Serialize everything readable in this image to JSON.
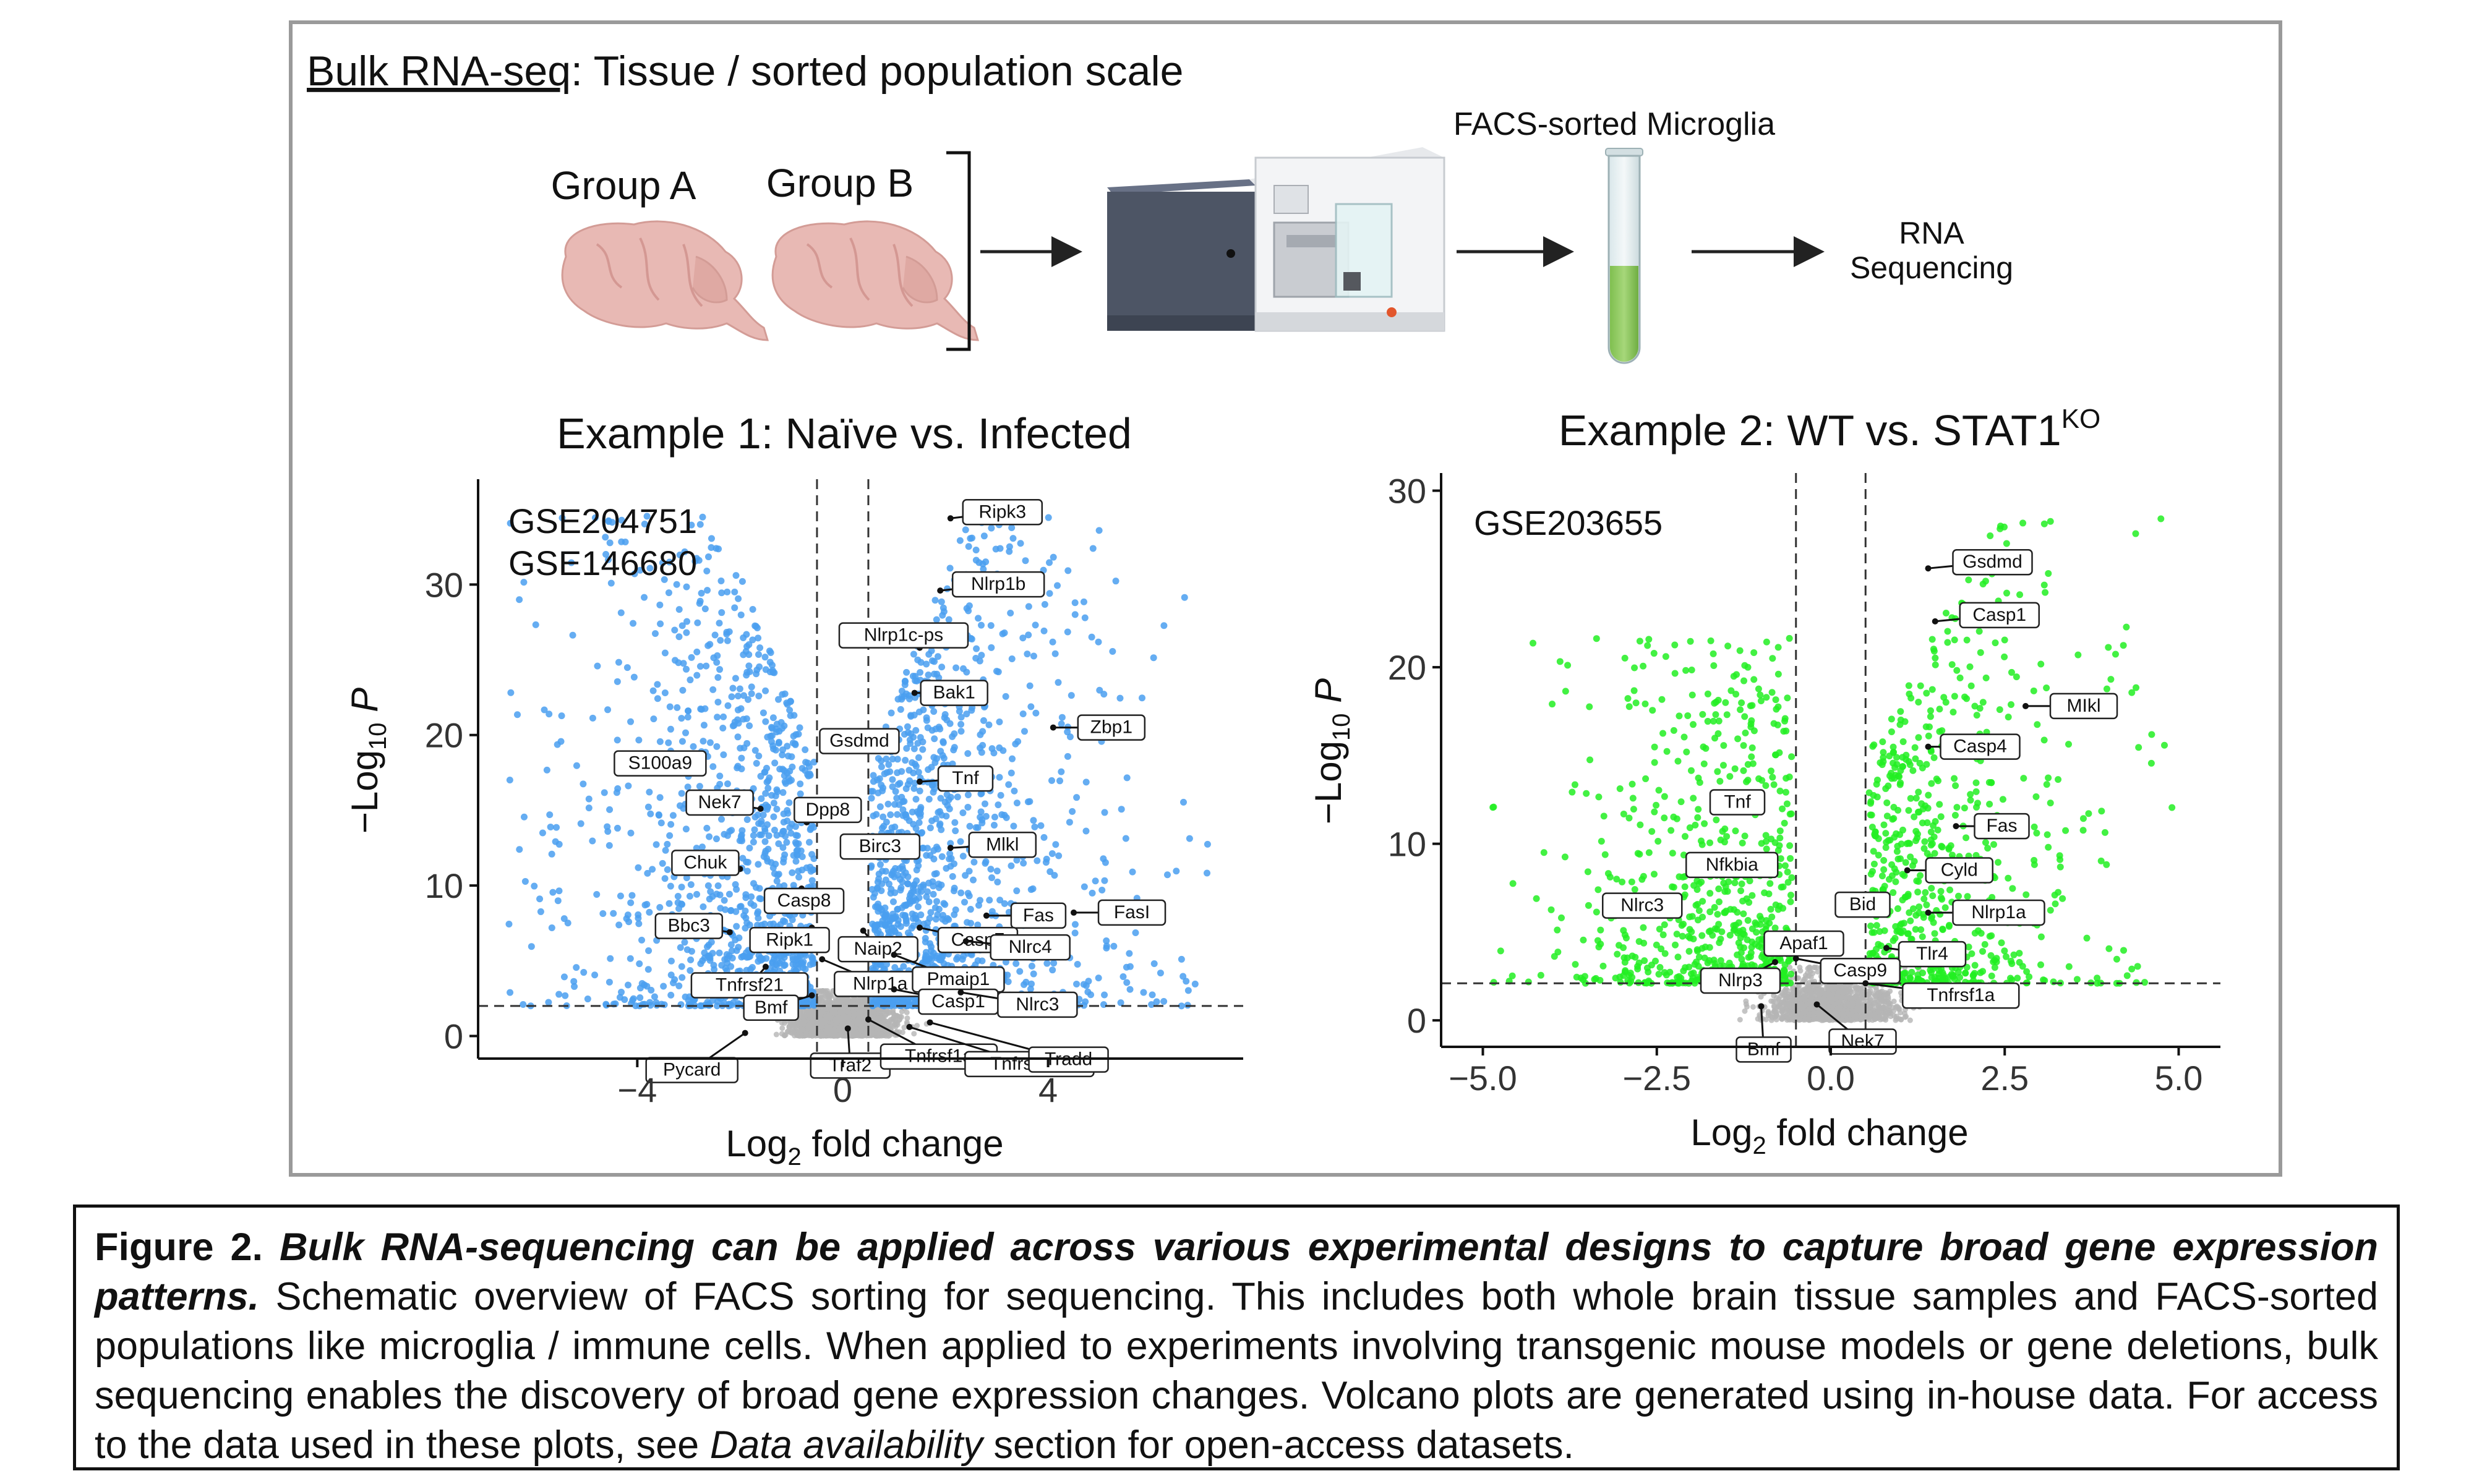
{
  "schematic": {
    "title_underlined": "Bulk RNA-seq",
    "title_rest": ": Tissue / sorted population scale",
    "group_a": "Group A",
    "group_b": "Group B",
    "facs_label": "FACS-sorted Microglia",
    "rna_line1": "RNA",
    "rna_line2": "Sequencing"
  },
  "colors": {
    "example1_points": "#4a9ff0",
    "example2_points": "#22ee22",
    "nonsig_points": "#b5b5b5",
    "brain": "#e8b9b4",
    "tube_liquid": "#8cc45c",
    "machine_dark": "#4d5565"
  },
  "chart_data": [
    {
      "type": "scatter",
      "subtype": "volcano",
      "title": "Example 1: Naïve vs. Infected",
      "annotation_lines": [
        "GSE204751",
        "GSE146680"
      ],
      "xlabel": "Log2 fold change",
      "ylabel": "−Log10 P",
      "xlim": [
        -7.1,
        7.8
      ],
      "ylim": [
        -1.5,
        37
      ],
      "x_ticks": [
        -4,
        0,
        4
      ],
      "y_ticks": [
        0,
        10,
        20,
        30
      ],
      "fc_threshold": [
        -0.5,
        0.5
      ],
      "p_threshold": 2,
      "grid": false,
      "labeled_genes": [
        {
          "gene": "Ripk3",
          "x": 2.1,
          "y": 34.4
        },
        {
          "gene": "Nlrp1b",
          "x": 1.9,
          "y": 29.6
        },
        {
          "gene": "Nlrp1c-ps",
          "x": 1.5,
          "y": 25.8
        },
        {
          "gene": "Bak1",
          "x": 1.4,
          "y": 22.8
        },
        {
          "gene": "Zbp1",
          "x": 4.1,
          "y": 20.5
        },
        {
          "gene": "Gsdmd",
          "x": 1.0,
          "y": 19.8
        },
        {
          "gene": "S100a9",
          "x": -3.0,
          "y": 17.5
        },
        {
          "gene": "Tnf",
          "x": 1.5,
          "y": 16.9
        },
        {
          "gene": "Nek7",
          "x": -1.6,
          "y": 15.1
        },
        {
          "gene": "Dpp8",
          "x": -0.7,
          "y": 14.2
        },
        {
          "gene": "Mlkl",
          "x": 2.1,
          "y": 12.5
        },
        {
          "gene": "Birc3",
          "x": 0.8,
          "y": 13.0
        },
        {
          "gene": "Chuk",
          "x": -2.0,
          "y": 11.1
        },
        {
          "gene": "Casp8",
          "x": -0.8,
          "y": 9.8
        },
        {
          "gene": "Fas",
          "x": 2.8,
          "y": 8.0
        },
        {
          "gene": "Bbc3",
          "x": -2.2,
          "y": 6.9
        },
        {
          "gene": "Ripk1",
          "x": -0.6,
          "y": 7.2
        },
        {
          "gene": "Naip2",
          "x": 0.4,
          "y": 7.0
        },
        {
          "gene": "Casp7",
          "x": 1.5,
          "y": 7.2
        },
        {
          "gene": "FasI",
          "x": 4.5,
          "y": 8.2
        },
        {
          "gene": "Tnfrsf21",
          "x": -1.5,
          "y": 4.6
        },
        {
          "gene": "Nlrp1a",
          "x": -0.4,
          "y": 5.1
        },
        {
          "gene": "Pmaip1",
          "x": 1.0,
          "y": 5.4
        },
        {
          "gene": "Nlrc4",
          "x": 2.4,
          "y": 6.3
        },
        {
          "gene": "Bmf",
          "x": -0.6,
          "y": 2.7
        },
        {
          "gene": "Casp1",
          "x": 1.0,
          "y": 3.1
        },
        {
          "gene": "Nlrc3",
          "x": 2.3,
          "y": 2.9
        },
        {
          "gene": "Pycard",
          "x": -1.9,
          "y": 0.2
        },
        {
          "gene": "Traf2",
          "x": 0.1,
          "y": 0.5
        },
        {
          "gene": "Tnfrsf1a",
          "x": 0.5,
          "y": 1.1
        },
        {
          "gene": "Tnfrsf10b",
          "x": 1.3,
          "y": 0.6
        },
        {
          "gene": "Tradd",
          "x": 1.7,
          "y": 0.9
        }
      ]
    },
    {
      "type": "scatter",
      "subtype": "volcano",
      "title": "Example 2: WT vs. STAT1",
      "title_superscript": "KO",
      "annotation_lines": [
        "GSE203655"
      ],
      "xlabel": "Log2 fold change",
      "ylabel": "−Log10 P",
      "xlim": [
        -5.6,
        5.6
      ],
      "ylim": [
        -1.5,
        31
      ],
      "x_ticks": [
        -5.0,
        -2.5,
        0.0,
        2.5,
        5.0
      ],
      "y_ticks": [
        0,
        10,
        20,
        30
      ],
      "fc_threshold": [
        -0.5,
        0.5
      ],
      "p_threshold": 2.1,
      "grid": false,
      "labeled_genes": [
        {
          "gene": "Gsdmd",
          "x": 1.4,
          "y": 25.6
        },
        {
          "gene": "Casp1",
          "x": 1.5,
          "y": 22.6
        },
        {
          "gene": "MIkl",
          "x": 2.8,
          "y": 17.8
        },
        {
          "gene": "Casp4",
          "x": 1.4,
          "y": 15.5
        },
        {
          "gene": "Tnf",
          "x": -1.2,
          "y": 12.0
        },
        {
          "gene": "Fas",
          "x": 1.8,
          "y": 11.0
        },
        {
          "gene": "Nfkbia",
          "x": -1.1,
          "y": 8.8
        },
        {
          "gene": "Cyld",
          "x": 1.1,
          "y": 8.5
        },
        {
          "gene": "Nlrc3",
          "x": -2.3,
          "y": 6.5
        },
        {
          "gene": "Bid",
          "x": 0.6,
          "y": 6.2
        },
        {
          "gene": "Nlrp1a",
          "x": 1.4,
          "y": 6.1
        },
        {
          "gene": "Apaf1",
          "x": -0.6,
          "y": 4.7
        },
        {
          "gene": "Tlr4",
          "x": 0.8,
          "y": 4.1
        },
        {
          "gene": "Nlrp3",
          "x": -0.8,
          "y": 3.3
        },
        {
          "gene": "Casp9",
          "x": -0.5,
          "y": 3.5
        },
        {
          "gene": "Tnfrsf1a",
          "x": 0.5,
          "y": 2.1
        },
        {
          "gene": "Bmf",
          "x": -1.0,
          "y": 0.8
        },
        {
          "gene": "Nek7",
          "x": -0.2,
          "y": 0.9
        }
      ]
    }
  ],
  "caption": {
    "label": "Figure 2.",
    "headline": "Bulk RNA-sequencing can be applied across various experimental designs to capture broad gene expression patterns.",
    "body": "Schematic overview of FACS sorting for sequencing. This includes both whole brain tissue samples and FACS-sorted populations like microglia / immune cells. When applied to experiments involving transgenic mouse models or gene deletions, bulk sequencing enables the discovery of broad gene expression changes. Volcano plots are generated using in-house data. For access to the data used in these plots, see",
    "italic_ref": "Data availability",
    "tail": "section for open-access datasets."
  }
}
